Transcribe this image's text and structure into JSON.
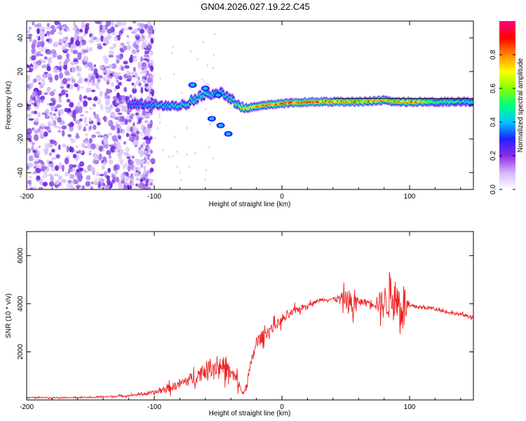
{
  "title": "GN04.2026.027.19.22.C45",
  "colors": {
    "line": "#ee2222",
    "axis": "#000000",
    "background": "#ffffff",
    "scatter": "#6a1fe0"
  },
  "chart_data": [
    {
      "type": "heatmap",
      "xlabel": "Height of straight line (km)",
      "ylabel": "Frequency (Hz)",
      "xlim": [
        -200,
        150
      ],
      "ylim": [
        -50,
        50
      ],
      "xticks": [
        -200,
        -100,
        0,
        100
      ],
      "yticks": [
        -40,
        -20,
        0,
        20,
        40
      ],
      "xtick_labels": [
        "-200",
        "-100",
        "0",
        "100"
      ],
      "ytick_labels": [
        "-40",
        "-20",
        "0",
        "20",
        "40"
      ],
      "colorbar": {
        "label": "Normalized spectral amplitude",
        "range": [
          0,
          1
        ],
        "ticks": [
          0.0,
          0.2,
          0.4,
          0.6,
          0.8
        ],
        "tick_labels": [
          "0.0",
          "0.2",
          "0.4",
          "0.6",
          "0.8"
        ],
        "colormap": [
          "#ffffff",
          "#d9b3ff",
          "#8a2be2",
          "#2222ff",
          "#00c8ff",
          "#00ff80",
          "#88ff00",
          "#ffff00",
          "#ff8800",
          "#ff0000",
          "#ff0080"
        ]
      },
      "noise_region_x": [
        -200,
        -110
      ],
      "signal_band": [
        {
          "x": -120,
          "y": 1,
          "level": 0.35
        },
        {
          "x": -100,
          "y": 0,
          "level": 0.45
        },
        {
          "x": -80,
          "y": -1,
          "level": 0.5
        },
        {
          "x": -65,
          "y": 5,
          "level": 0.5
        },
        {
          "x": -50,
          "y": 8,
          "level": 0.45
        },
        {
          "x": -40,
          "y": 4,
          "level": 0.5
        },
        {
          "x": -30,
          "y": -2,
          "level": 0.7
        },
        {
          "x": -15,
          "y": 0,
          "level": 0.85
        },
        {
          "x": 0,
          "y": 1,
          "level": 0.85
        },
        {
          "x": 20,
          "y": 2,
          "level": 0.9
        },
        {
          "x": 45,
          "y": 2,
          "level": 0.85
        },
        {
          "x": 60,
          "y": 2,
          "level": 0.85
        },
        {
          "x": 80,
          "y": 3,
          "level": 0.8
        },
        {
          "x": 90,
          "y": 2,
          "level": 0.8
        },
        {
          "x": 105,
          "y": 2,
          "level": 0.85
        },
        {
          "x": 120,
          "y": 2,
          "level": 0.55
        },
        {
          "x": 150,
          "y": 2,
          "level": 0.5
        }
      ],
      "side_branch": [
        {
          "x": -70,
          "y": 12
        },
        {
          "x": -60,
          "y": 10
        },
        {
          "x": -50,
          "y": 6
        },
        {
          "x": -55,
          "y": -8
        },
        {
          "x": -48,
          "y": -12
        },
        {
          "x": -42,
          "y": -17
        }
      ]
    },
    {
      "type": "line",
      "xlabel": "Height of straight line (km)",
      "ylabel": "SNR (10 * v/v)",
      "xlim": [
        -200,
        150
      ],
      "ylim": [
        0,
        7000
      ],
      "xticks": [
        -200,
        -100,
        0,
        100
      ],
      "yticks": [
        2000,
        4000,
        6000
      ],
      "xtick_labels": [
        "-200",
        "-100",
        "0",
        "100"
      ],
      "ytick_labels": [
        "2000",
        "4000",
        "6000"
      ],
      "series": [
        {
          "name": "SNR",
          "x": [
            -200,
            -150,
            -120,
            -100,
            -85,
            -70,
            -55,
            -45,
            -35,
            -30,
            -25,
            -20,
            -10,
            0,
            10,
            20,
            30,
            40,
            50,
            55,
            60,
            70,
            80,
            85,
            90,
            95,
            100,
            110,
            120,
            130,
            140,
            150
          ],
          "y": [
            100,
            100,
            180,
            300,
            550,
            900,
            1400,
            1400,
            800,
            200,
            1300,
            2400,
            2900,
            3300,
            3700,
            3950,
            4150,
            4200,
            4200,
            3900,
            4100,
            4050,
            4000,
            4400,
            4100,
            3900,
            3900,
            3850,
            3800,
            3650,
            3550,
            3450
          ],
          "spread": [
            50,
            60,
            80,
            200,
            400,
            600,
            900,
            900,
            600,
            150,
            500,
            600,
            500,
            400,
            350,
            200,
            150,
            150,
            800,
            1600,
            300,
            300,
            1500,
            2400,
            2000,
            2600,
            200,
            150,
            150,
            150,
            150,
            150
          ]
        }
      ]
    }
  ]
}
